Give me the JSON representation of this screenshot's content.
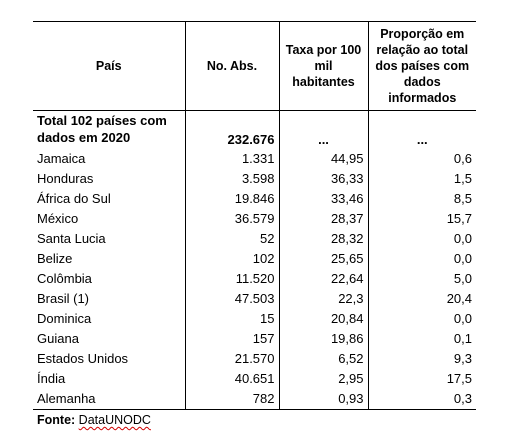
{
  "table": {
    "headers": {
      "country": "País",
      "abs": "No. Abs.",
      "rate": "Taxa por 100 mil habitantes",
      "share": "Proporção em relação ao total dos países com dados informados"
    },
    "total": {
      "label": "Total 102 países com dados em 2020",
      "abs": "232.676",
      "rate": "...",
      "share": "..."
    },
    "rows": [
      {
        "country": "Jamaica",
        "abs": "1.331",
        "rate": "44,95",
        "share": "0,6"
      },
      {
        "country": "Honduras",
        "abs": "3.598",
        "rate": "36,33",
        "share": "1,5"
      },
      {
        "country": "África do Sul",
        "abs": "19.846",
        "rate": "33,46",
        "share": "8,5"
      },
      {
        "country": "México",
        "abs": "36.579",
        "rate": "28,37",
        "share": "15,7"
      },
      {
        "country": "Santa Lucia",
        "abs": "52",
        "rate": "28,32",
        "share": "0,0"
      },
      {
        "country": "Belize",
        "abs": "102",
        "rate": "25,65",
        "share": "0,0"
      },
      {
        "country": "Colômbia",
        "abs": "11.520",
        "rate": "22,64",
        "share": "5,0"
      },
      {
        "country": "Brasil (1)",
        "abs": "47.503",
        "rate": "22,3",
        "share": "20,4"
      },
      {
        "country": "Dominica",
        "abs": "15",
        "rate": "20,84",
        "share": "0,0"
      },
      {
        "country": "Guiana",
        "abs": "157",
        "rate": "19,86",
        "share": "0,1"
      },
      {
        "country": "Estados Unidos",
        "abs": "21.570",
        "rate": "6,52",
        "share": "9,3"
      },
      {
        "country": "Índia",
        "abs": "40.651",
        "rate": "2,95",
        "share": "17,5"
      },
      {
        "country": "Alemanha",
        "abs": "782",
        "rate": "0,93",
        "share": "0,3"
      }
    ]
  },
  "source": {
    "label": "Fonte:",
    "value": "DataUNODC"
  }
}
